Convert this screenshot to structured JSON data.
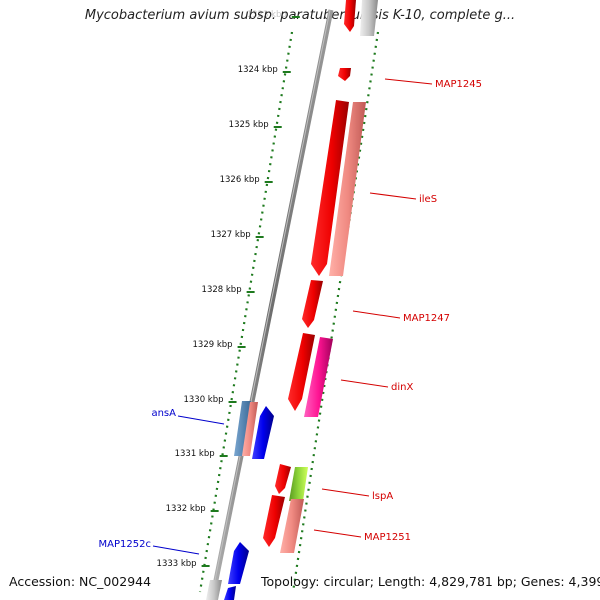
{
  "title": "Mycobacterium avium subsp. paratuberculosis K-10, complete g...",
  "footer": {
    "accession": "Accession: NC_002944",
    "summary": "Topology: circular; Length: 4,829,781 bp; Genes: 4,399"
  },
  "ticks": [
    "1323 kbp",
    "1324 kbp",
    "1325 kbp",
    "1326 kbp",
    "1327 kbp",
    "1328 kbp",
    "1329 kbp",
    "1330 kbp",
    "1331 kbp",
    "1332 kbp",
    "1333 kbp"
  ],
  "gene_labels": [
    {
      "text": "MAP1245",
      "strand": "forward"
    },
    {
      "text": "ileS",
      "strand": "forward"
    },
    {
      "text": "MAP1247",
      "strand": "forward"
    },
    {
      "text": "dinX",
      "strand": "forward"
    },
    {
      "text": "lspA",
      "strand": "forward"
    },
    {
      "text": "MAP1251",
      "strand": "forward"
    },
    {
      "text": "ansA",
      "strand": "reverse"
    },
    {
      "text": "MAP1252c",
      "strand": "reverse"
    }
  ],
  "colors": {
    "forward_label": "#d40000",
    "reverse_label": "#0000cc",
    "tick": "#1e7a1e",
    "backbone": "#808080"
  }
}
